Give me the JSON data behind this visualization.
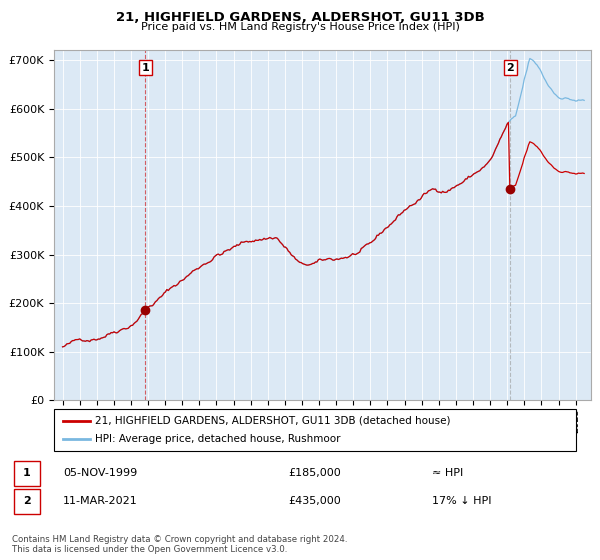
{
  "title_line1": "21, HIGHFIELD GARDENS, ALDERSHOT, GU11 3DB",
  "title_line2": "Price paid vs. HM Land Registry's House Price Index (HPI)",
  "legend_line1": "21, HIGHFIELD GARDENS, ALDERSHOT, GU11 3DB (detached house)",
  "legend_line2": "HPI: Average price, detached house, Rushmoor",
  "annotation1_label": "1",
  "annotation1_date": "05-NOV-1999",
  "annotation1_price": "£185,000",
  "annotation1_hpi": "≈ HPI",
  "annotation2_label": "2",
  "annotation2_date": "11-MAR-2021",
  "annotation2_price": "£435,000",
  "annotation2_hpi": "17% ↓ HPI",
  "footer": "Contains HM Land Registry data © Crown copyright and database right 2024.\nThis data is licensed under the Open Government Licence v3.0.",
  "sale1_year": 1999.85,
  "sale1_value": 185000,
  "sale2_year": 2021.19,
  "sale2_value": 435000,
  "hpi_line_color": "#7ab8e0",
  "price_line_color": "#cc0000",
  "dot_color": "#990000",
  "vline1_color": "#cc0000",
  "vline2_color": "#999999",
  "bg_color": "#dce9f5",
  "ylim": [
    0,
    720000
  ],
  "yticks": [
    0,
    100000,
    200000,
    300000,
    400000,
    500000,
    600000,
    700000
  ],
  "xlim_left": 1994.5,
  "xlim_right": 2025.9
}
